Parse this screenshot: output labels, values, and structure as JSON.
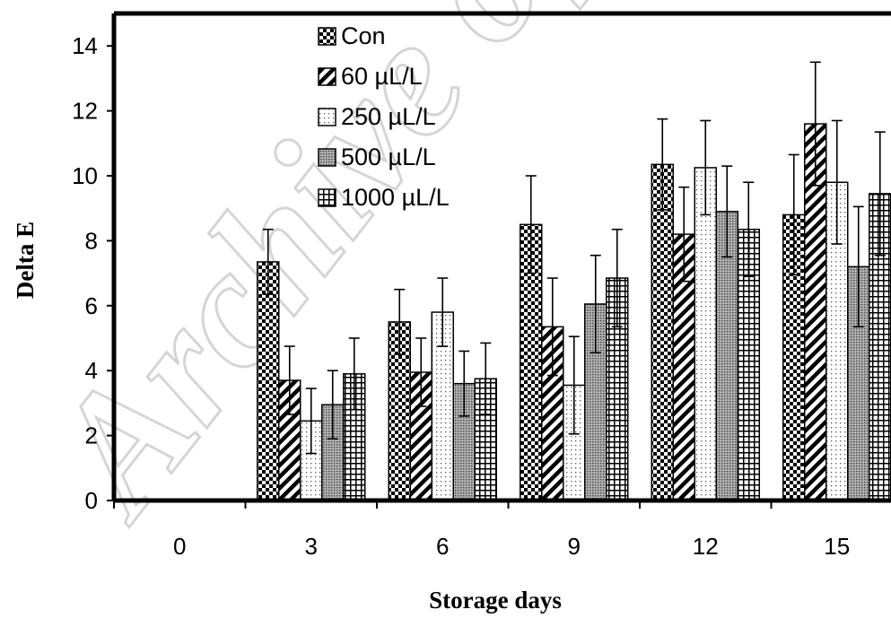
{
  "watermark": "Archive of",
  "chart_data": {
    "type": "bar",
    "xlabel": "Storage days",
    "ylabel": "Delta E",
    "ylim": [
      0,
      15
    ],
    "yticks": [
      0,
      2,
      4,
      6,
      8,
      10,
      12,
      14
    ],
    "categories": [
      "0",
      "3",
      "6",
      "9",
      "12",
      "15"
    ],
    "legend_position": "top-left",
    "series": [
      {
        "name": "Con",
        "pattern": "checker",
        "values": [
          0,
          7.35,
          5.5,
          8.5,
          10.35,
          8.8
        ],
        "errors": [
          0,
          1.0,
          1.0,
          1.5,
          1.4,
          1.85
        ]
      },
      {
        "name": "60 µL/L",
        "pattern": "diagonal",
        "values": [
          0,
          3.7,
          3.95,
          5.35,
          8.2,
          11.6
        ],
        "errors": [
          0,
          1.05,
          1.05,
          1.5,
          1.45,
          1.9
        ]
      },
      {
        "name": "250 µL/L",
        "pattern": "dots",
        "values": [
          0,
          2.45,
          5.8,
          3.55,
          10.25,
          9.8
        ],
        "errors": [
          0,
          1.0,
          1.05,
          1.5,
          1.45,
          1.9
        ]
      },
      {
        "name": "500 µL/L",
        "pattern": "shaded",
        "values": [
          0,
          2.95,
          3.6,
          6.05,
          8.9,
          7.2
        ],
        "errors": [
          0,
          1.05,
          1.0,
          1.5,
          1.4,
          1.85
        ]
      },
      {
        "name": "1000 µL/L",
        "pattern": "grid",
        "values": [
          0,
          3.9,
          3.75,
          6.85,
          8.35,
          9.45
        ],
        "errors": [
          0,
          1.1,
          1.1,
          1.5,
          1.45,
          1.9
        ]
      }
    ]
  }
}
